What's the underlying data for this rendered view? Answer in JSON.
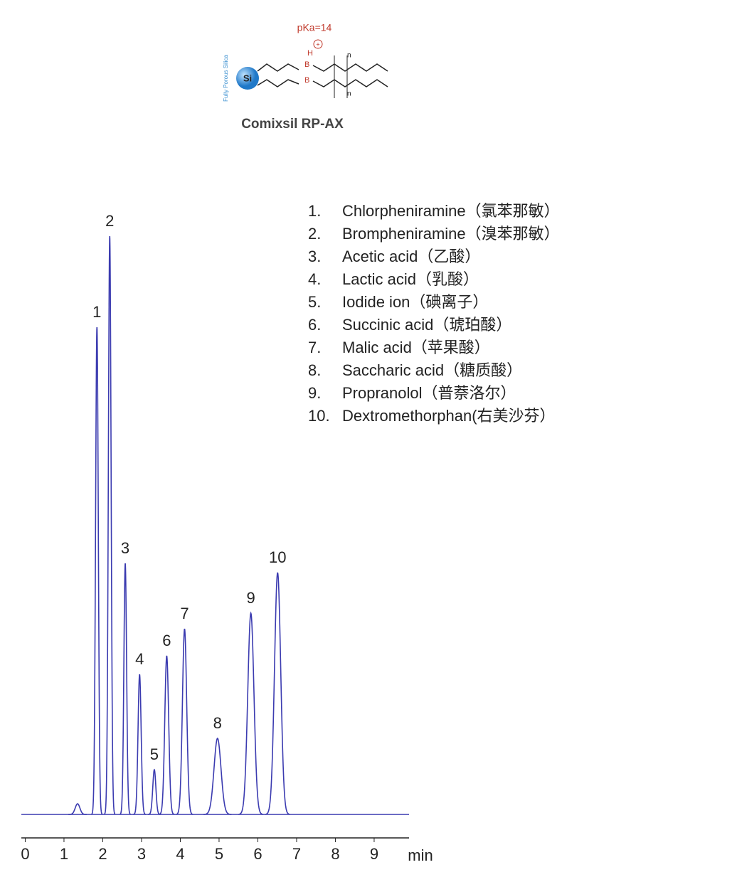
{
  "header": {
    "pka": "pKa=14",
    "si": "Si",
    "boron": "B",
    "hydrogen": "H",
    "n": "n",
    "support": "Fully Porous Silica",
    "product": "Comixsil RP-AX"
  },
  "chart_data": {
    "type": "chromatogram",
    "x_label": "min",
    "xlim": [
      -0.1,
      9.9
    ],
    "xticks": [
      0,
      1,
      2,
      3,
      4,
      5,
      6,
      7,
      8,
      9
    ],
    "ylim": [
      0,
      830
    ],
    "color": "#3b3bb0",
    "peaks": {
      "labels": [
        null,
        "1",
        "2",
        "3",
        "4",
        "5",
        "6",
        "7",
        "8",
        "9",
        "10"
      ],
      "x": [
        1.35,
        1.85,
        2.18,
        2.58,
        2.95,
        3.33,
        3.65,
        4.11,
        4.96,
        5.82,
        6.51
      ],
      "values": [
        15,
        685,
        813,
        353,
        197,
        63,
        223,
        261,
        107,
        283,
        340
      ],
      "widths": [
        0.06,
        0.035,
        0.035,
        0.035,
        0.04,
        0.04,
        0.05,
        0.055,
        0.09,
        0.08,
        0.08
      ]
    },
    "legend": [
      {
        "number": "1.",
        "name": "Chlorpheniramine（氯苯那敏）"
      },
      {
        "number": "2.",
        "name": "Brompheniramine（溴苯那敏）"
      },
      {
        "number": "3.",
        "name": "Acetic acid（乙酸）"
      },
      {
        "number": "4.",
        "name": "Lactic acid（乳酸）"
      },
      {
        "number": "5.",
        "name": "Iodide ion（碘离子）"
      },
      {
        "number": "6.",
        "name": "Succinic acid（琥珀酸）"
      },
      {
        "number": "7.",
        "name": "Malic acid（苹果酸）"
      },
      {
        "number": "8.",
        "name": "Saccharic acid（糖质酸）"
      },
      {
        "number": "9.",
        "name": "Propranolol（普萘洛尔）"
      },
      {
        "number": "10.",
        "name": "Dextromethorphan(右美沙芬）"
      }
    ]
  }
}
